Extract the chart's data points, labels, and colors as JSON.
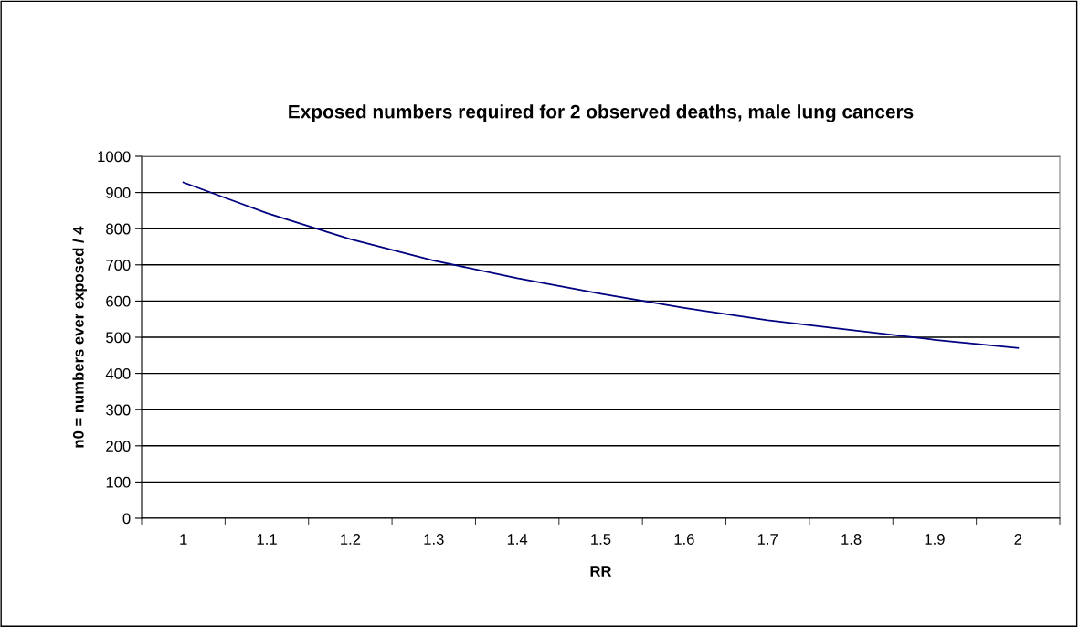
{
  "chart_data": {
    "type": "line",
    "title": "Exposed numbers required for 2 observed deaths, male lung cancers",
    "xlabel": "RR",
    "ylabel": "n0 = numbers ever exposed / 4",
    "categories": [
      "1",
      "1.1",
      "1.2",
      "1.3",
      "1.4",
      "1.5",
      "1.6",
      "1.7",
      "1.8",
      "1.9",
      "2"
    ],
    "series": [
      {
        "color": "#000080",
        "values": [
          928,
          843,
          771,
          712,
          663,
          620,
          581,
          547,
          520,
          493,
          470
        ]
      }
    ],
    "ylim": [
      0,
      1000
    ],
    "yticks": [
      0,
      100,
      200,
      300,
      400,
      500,
      600,
      700,
      800,
      900,
      1000
    ],
    "grid": "y",
    "legend": false,
    "marker": "none",
    "line_style": "solid"
  }
}
